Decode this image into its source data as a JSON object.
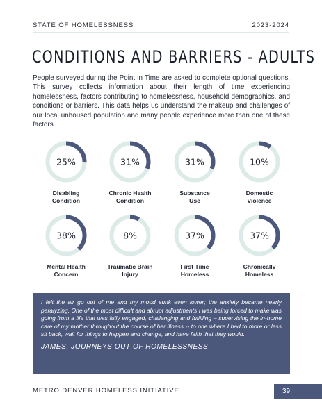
{
  "header": {
    "left": "STATE OF HOMELESSNESS",
    "right": "2023-2024"
  },
  "title": "CONDITIONS AND BARRIERS - ADULTS",
  "intro": "People surveyed during the Point in Time are asked to complete optional questions. This survey collects information about their length of time experiencing homelessness, factors contributing to homelessness, household demographics, and conditions or barriers. This data helps us understand the makeup and challenges of our local unhoused population and many people experience more than one of these factors.",
  "colors": {
    "accent": "#4b587b",
    "track": "#dcebe7",
    "text": "#1f2430"
  },
  "metrics": [
    {
      "value": 25,
      "value_label": "25%",
      "label_line1": "Disabling",
      "label_line2": "Condition"
    },
    {
      "value": 31,
      "value_label": "31%",
      "label_line1": "Chronic Health",
      "label_line2": "Condition"
    },
    {
      "value": 31,
      "value_label": "31%",
      "label_line1": "Substance",
      "label_line2": "Use"
    },
    {
      "value": 10,
      "value_label": "10%",
      "label_line1": "Domestic",
      "label_line2": "Violence"
    },
    {
      "value": 38,
      "value_label": "38%",
      "label_line1": "Mental Health",
      "label_line2": "Concern"
    },
    {
      "value": 8,
      "value_label": "8%",
      "label_line1": "Traumatic Brain",
      "label_line2": "Injury"
    },
    {
      "value": 37,
      "value_label": "37%",
      "label_line1": "First Time",
      "label_line2": "Homeless"
    },
    {
      "value": 37,
      "value_label": "37%",
      "label_line1": "Chronically",
      "label_line2": "Homeless"
    }
  ],
  "quote": {
    "text": "I felt the air go out of me and my mood sunk even lower; the anxiety became nearly paralyzing. One of the most difficult and abrupt adjustments I was being forced to make was going from a life that was fully engaged, challenging and fulfilling – supervising the in-home care of my mother throughout the course of her illness -- to one where I had to more or less sit back, wait for things to happen and change, and have faith that they would.",
    "attribution": "JAMES, JOURNEYS OUT OF HOMELESSNESS"
  },
  "footer": {
    "org": "METRO DENVER HOMELESS INITIATIVE",
    "page_number": "39"
  }
}
